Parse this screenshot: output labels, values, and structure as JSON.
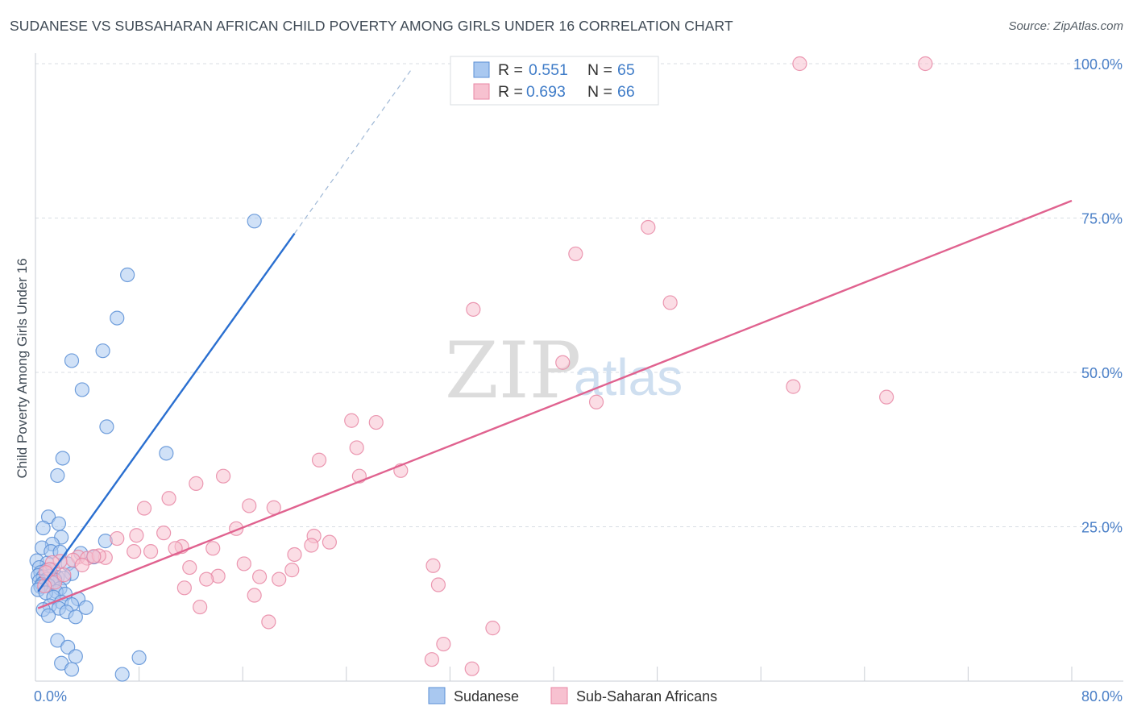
{
  "title": "SUDANESE VS SUBSAHARAN AFRICAN CHILD POVERTY AMONG GIRLS UNDER 16 CORRELATION CHART",
  "source": "Source: ZipAtlas.com",
  "watermark": {
    "zip": "ZIP",
    "atlas": "atlas"
  },
  "legend": {
    "r_label": "R =",
    "n_label": "N =",
    "items": [
      {
        "r": "0.551",
        "n": "65"
      },
      {
        "r": "0.693",
        "n": "66"
      }
    ]
  },
  "colors": {
    "blue_fill": "#a9c8f0",
    "blue_stroke": "#5b8fd6",
    "blue_line": "#2a6fd0",
    "pink_fill": "#f7c1d0",
    "pink_stroke": "#e887a5",
    "pink_line": "#e0628f",
    "tick_text": "#4a7fc7",
    "grid": "#d8dde3"
  },
  "chart_data": {
    "type": "scatter",
    "title": "SUDANESE VS SUBSAHARAN AFRICAN CHILD POVERTY AMONG GIRLS UNDER 16 CORRELATION CHART",
    "xlabel": "",
    "ylabel": "Child Poverty Among Girls Under 16",
    "xlim": [
      0,
      80
    ],
    "ylim": [
      0,
      100
    ],
    "x_tick_labels": [
      "0.0%",
      "80.0%"
    ],
    "y_tick_labels": [
      "25.0%",
      "50.0%",
      "75.0%",
      "100.0%"
    ],
    "y_ticks": [
      25,
      50,
      75,
      100
    ],
    "grid": true,
    "legend_position": "top-center",
    "series": [
      {
        "name": "Sudanese",
        "color": "blue",
        "r": 0.551,
        "n": 65,
        "trend": {
          "x1": 0.2,
          "y1": 14.5,
          "x2": 20.0,
          "y2": 72.5,
          "dash_to_x": 29.0,
          "dash_to_y": 99.0
        },
        "points": [
          [
            16.9,
            74.5
          ],
          [
            7.1,
            65.8
          ],
          [
            6.3,
            58.8
          ],
          [
            5.2,
            53.5
          ],
          [
            2.8,
            51.9
          ],
          [
            3.6,
            47.2
          ],
          [
            5.5,
            41.2
          ],
          [
            10.1,
            36.9
          ],
          [
            2.1,
            36.1
          ],
          [
            1.7,
            33.3
          ],
          [
            1.0,
            26.6
          ],
          [
            1.8,
            25.5
          ],
          [
            0.6,
            24.8
          ],
          [
            2.0,
            23.3
          ],
          [
            5.4,
            22.7
          ],
          [
            1.3,
            22.2
          ],
          [
            0.5,
            21.6
          ],
          [
            1.2,
            21.0
          ],
          [
            1.9,
            20.9
          ],
          [
            3.5,
            20.7
          ],
          [
            4.5,
            20.1
          ],
          [
            0.1,
            19.5
          ],
          [
            0.9,
            19.1
          ],
          [
            2.5,
            19.0
          ],
          [
            0.3,
            18.4
          ],
          [
            1.4,
            18.0
          ],
          [
            0.8,
            17.9
          ],
          [
            0.4,
            17.6
          ],
          [
            2.8,
            17.4
          ],
          [
            0.2,
            17.1
          ],
          [
            1.1,
            17.0
          ],
          [
            0.6,
            16.9
          ],
          [
            1.7,
            16.8
          ],
          [
            2.2,
            16.7
          ],
          [
            0.9,
            16.5
          ],
          [
            1.5,
            16.4
          ],
          [
            0.3,
            16.2
          ],
          [
            0.7,
            16.1
          ],
          [
            1.3,
            15.9
          ],
          [
            0.5,
            15.7
          ],
          [
            1.0,
            15.5
          ],
          [
            0.4,
            15.3
          ],
          [
            1.9,
            15.0
          ],
          [
            0.2,
            14.8
          ],
          [
            1.6,
            14.5
          ],
          [
            0.8,
            14.3
          ],
          [
            2.3,
            14.1
          ],
          [
            1.4,
            13.6
          ],
          [
            3.3,
            13.3
          ],
          [
            2.0,
            12.8
          ],
          [
            2.8,
            12.4
          ],
          [
            1.1,
            12.2
          ],
          [
            3.9,
            11.9
          ],
          [
            1.8,
            11.8
          ],
          [
            0.6,
            11.6
          ],
          [
            2.4,
            11.2
          ],
          [
            1.0,
            10.6
          ],
          [
            3.1,
            10.4
          ],
          [
            1.7,
            6.6
          ],
          [
            2.5,
            5.5
          ],
          [
            3.1,
            4.0
          ],
          [
            8.0,
            3.8
          ],
          [
            2.0,
            2.9
          ],
          [
            2.8,
            1.9
          ],
          [
            6.7,
            1.1
          ]
        ]
      },
      {
        "name": "Sub-Saharan Africans",
        "color": "pink",
        "r": 0.693,
        "n": 66,
        "trend": {
          "x1": 0.2,
          "y1": 11.8,
          "x2": 80.0,
          "y2": 77.8
        },
        "points": [
          [
            59.0,
            100.0
          ],
          [
            68.7,
            100.0
          ],
          [
            47.3,
            73.5
          ],
          [
            41.7,
            69.2
          ],
          [
            49.0,
            61.3
          ],
          [
            33.8,
            60.2
          ],
          [
            40.7,
            51.6
          ],
          [
            43.3,
            45.2
          ],
          [
            58.5,
            47.7
          ],
          [
            65.7,
            46.0
          ],
          [
            24.4,
            42.2
          ],
          [
            26.3,
            41.9
          ],
          [
            24.8,
            37.8
          ],
          [
            21.9,
            35.8
          ],
          [
            28.2,
            34.1
          ],
          [
            25.0,
            33.2
          ],
          [
            14.5,
            33.2
          ],
          [
            12.4,
            32.0
          ],
          [
            10.3,
            29.6
          ],
          [
            8.4,
            28.0
          ],
          [
            16.5,
            28.4
          ],
          [
            18.4,
            28.1
          ],
          [
            15.5,
            24.7
          ],
          [
            9.9,
            24.0
          ],
          [
            7.8,
            23.6
          ],
          [
            21.5,
            23.5
          ],
          [
            6.3,
            23.1
          ],
          [
            22.7,
            22.5
          ],
          [
            21.3,
            22.0
          ],
          [
            11.3,
            21.8
          ],
          [
            10.8,
            21.5
          ],
          [
            13.7,
            21.5
          ],
          [
            8.9,
            21.0
          ],
          [
            7.6,
            21.0
          ],
          [
            20.0,
            20.5
          ],
          [
            3.3,
            20.1
          ],
          [
            5.4,
            20.0
          ],
          [
            4.0,
            19.9
          ],
          [
            4.9,
            20.3
          ],
          [
            2.9,
            19.6
          ],
          [
            4.5,
            20.2
          ],
          [
            1.9,
            19.4
          ],
          [
            1.3,
            19.2
          ],
          [
            16.1,
            19.0
          ],
          [
            30.7,
            18.7
          ],
          [
            11.9,
            18.4
          ],
          [
            1.1,
            18.1
          ],
          [
            19.8,
            18.0
          ],
          [
            14.1,
            17.0
          ],
          [
            17.3,
            16.9
          ],
          [
            18.8,
            16.5
          ],
          [
            13.2,
            16.5
          ],
          [
            1.5,
            16.0
          ],
          [
            0.7,
            15.4
          ],
          [
            31.1,
            15.6
          ],
          [
            11.5,
            15.1
          ],
          [
            16.9,
            13.9
          ],
          [
            12.7,
            12.0
          ],
          [
            18.0,
            9.6
          ],
          [
            35.3,
            8.6
          ],
          [
            31.5,
            6.0
          ],
          [
            30.6,
            3.5
          ],
          [
            33.7,
            2.0
          ],
          [
            0.8,
            17.6
          ],
          [
            2.2,
            17.2
          ],
          [
            3.6,
            18.8
          ]
        ]
      }
    ]
  },
  "bottom_legend": [
    "Sudanese",
    "Sub-Saharan Africans"
  ]
}
